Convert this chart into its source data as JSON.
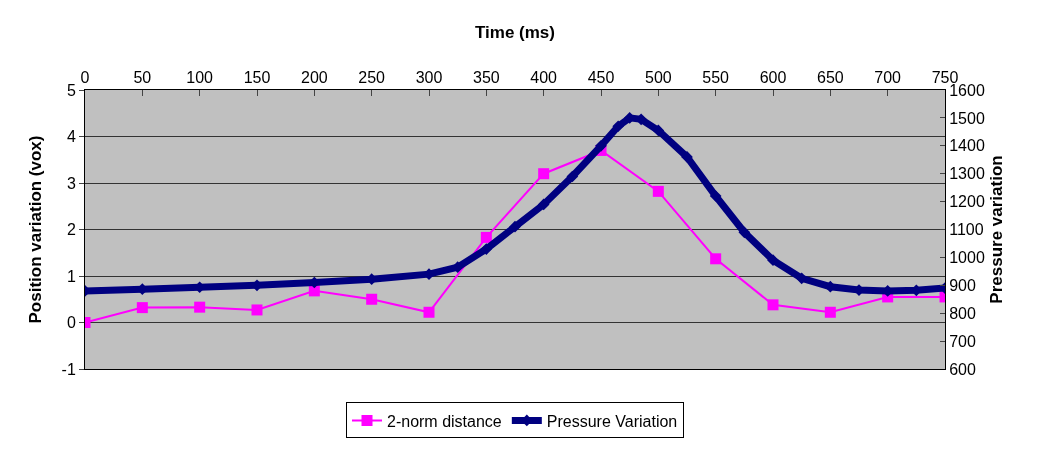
{
  "chart_data": {
    "type": "line",
    "xlabel": "Time (ms)",
    "ylabel": "Position variation (vox)",
    "y2label": "Pressure variation",
    "x": [
      0,
      50,
      100,
      150,
      200,
      250,
      300,
      350,
      400,
      450,
      500,
      550,
      600,
      650,
      700,
      750
    ],
    "series": [
      {
        "name": "2-norm distance",
        "color": "#ff00ff",
        "marker": "square",
        "values": [
          0,
          0.32,
          0.33,
          0.27,
          0.68,
          0.5,
          0.22,
          1.83,
          3.2,
          3.7,
          2.82,
          1.37,
          0.38,
          0.22,
          0.55,
          0.55
        ]
      },
      {
        "name": "Pressure Variation",
        "color": "#000080",
        "marker": "diamond",
        "axis": "y2",
        "x": [
          0,
          50,
          100,
          150,
          200,
          250,
          300,
          325,
          350,
          375,
          400,
          425,
          450,
          465,
          475,
          485,
          500,
          525,
          550,
          575,
          600,
          625,
          650,
          675,
          700,
          725,
          750
        ],
        "values": [
          880,
          886,
          893,
          900,
          910,
          922,
          940,
          965,
          1030,
          1110,
          1190,
          1290,
          1400,
          1470,
          1500,
          1495,
          1455,
          1360,
          1220,
          1090,
          990,
          925,
          895,
          883,
          880,
          882,
          890
        ]
      }
    ],
    "xlim": [
      0,
      750
    ],
    "xticks": [
      0,
      50,
      100,
      150,
      200,
      250,
      300,
      350,
      400,
      450,
      500,
      550,
      600,
      650,
      700,
      750
    ],
    "ylim": [
      -1,
      5
    ],
    "yticks": [
      -1,
      0,
      1,
      2,
      3,
      4,
      5
    ],
    "y2lim": [
      600,
      1600
    ],
    "y2ticks": [
      600,
      700,
      800,
      900,
      1000,
      1100,
      1200,
      1300,
      1400,
      1500,
      1600
    ],
    "grid": "y",
    "legend": "bottom",
    "line_style": "solid"
  }
}
